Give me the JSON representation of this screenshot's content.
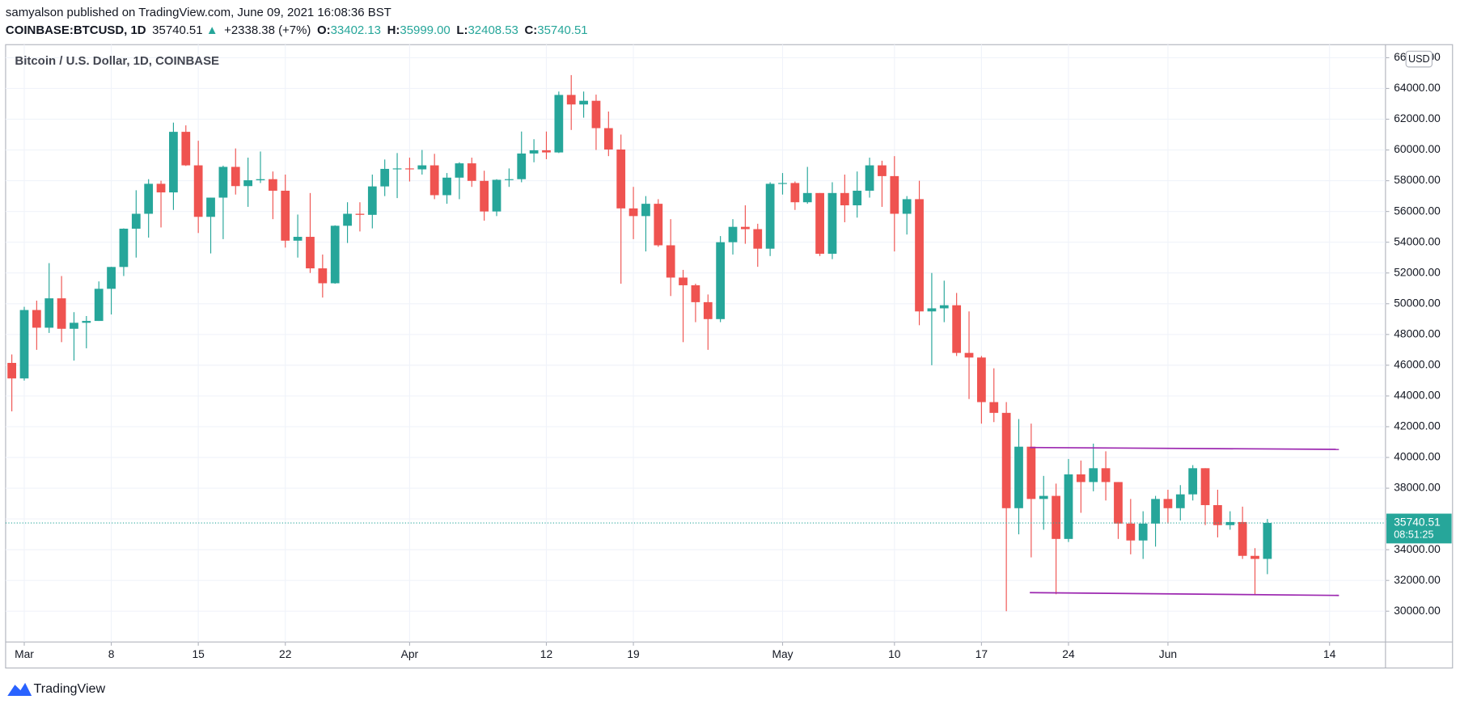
{
  "header": {
    "publisher": "samyalson published on TradingView.com, June 09, 2021 16:08:36 BST",
    "symbol": "COINBASE:BTCUSD, 1D",
    "last": "35740.51",
    "arrow": "▲",
    "change": "+2338.38 (+7%)",
    "open_label": "O:",
    "open": "33402.13",
    "high_label": "H:",
    "high": "35999.00",
    "low_label": "L:",
    "low": "32408.53",
    "close_label": "C:",
    "close": "35740.51"
  },
  "chart_data": {
    "type": "candlestick",
    "title": "Bitcoin / U.S. Dollar, 1D, COINBASE",
    "currency": "USD",
    "up_color": "#26a69a",
    "down_color": "#ef5350",
    "grid": true,
    "categories": [
      null,
      "Mar",
      null,
      null,
      null,
      null,
      null,
      null,
      "8",
      null,
      null,
      null,
      null,
      null,
      null,
      "15",
      null,
      null,
      null,
      null,
      null,
      null,
      "22",
      null,
      null,
      null,
      null,
      null,
      null,
      null,
      null,
      null,
      "Apr",
      null,
      null,
      null,
      null,
      null,
      null,
      null,
      null,
      null,
      null,
      "12",
      null,
      null,
      null,
      null,
      null,
      null,
      "19",
      null,
      null,
      null,
      null,
      null,
      null,
      null,
      null,
      null,
      null,
      null,
      "May",
      null,
      null,
      null,
      null,
      null,
      null,
      null,
      null,
      "10",
      null,
      null,
      null,
      null,
      null,
      null,
      "17",
      null,
      null,
      null,
      null,
      null,
      null,
      "24",
      null,
      null,
      null,
      null,
      null,
      null,
      null,
      "Jun",
      null,
      null,
      null,
      null,
      null,
      null,
      null,
      null,
      null,
      null,
      null,
      null,
      "14",
      null,
      null,
      null,
      null
    ],
    "open": [
      46150,
      45140,
      49590,
      48440,
      50350,
      48370,
      48760,
      48880,
      50970,
      52390,
      54880,
      55850,
      57800,
      57240,
      61180,
      59000,
      55650,
      56900,
      58900,
      57650,
      58030,
      58100,
      57350,
      54100,
      54350,
      52300,
      51330,
      55070,
      55850,
      55780,
      57630,
      58770,
      58800,
      58740,
      59000,
      57060,
      58200,
      59130,
      57990,
      56000,
      58060,
      58100,
      59770,
      59980,
      59840,
      63580,
      62960,
      63200,
      61420,
      60030,
      56200,
      55700,
      56500,
      53800,
      51700,
      51200,
      50100,
      49000,
      54000,
      55000,
      54850,
      53580,
      57800,
      57850,
      56600,
      57200,
      53250,
      57200,
      56400,
      57350,
      59000,
      58300,
      55850,
      56800,
      49500,
      49700,
      49900,
      46800,
      46500,
      43600,
      42900,
      36700,
      40700,
      37300,
      37500,
      34700,
      38900,
      38400,
      39300,
      38400,
      35700,
      34600,
      35700,
      37300,
      36700,
      37600,
      39300,
      36900,
      35600,
      35800,
      33600,
      33402.13,
      null,
      null,
      null,
      null,
      null,
      null,
      null,
      null,
      null
    ],
    "high": [
      46700,
      49800,
      50200,
      52640,
      51800,
      49450,
      49200,
      51450,
      52400,
      54900,
      57380,
      58100,
      58000,
      61780,
      61600,
      60600,
      56900,
      58980,
      60100,
      59500,
      59900,
      58600,
      58400,
      55800,
      57200,
      53200,
      55100,
      56600,
      56600,
      58400,
      59380,
      59800,
      59500,
      60000,
      59750,
      58500,
      59200,
      59500,
      58650,
      58100,
      58800,
      61200,
      60700,
      61200,
      63800,
      64870,
      63800,
      63600,
      62500,
      61000,
      57600,
      57000,
      56800,
      55500,
      52200,
      51300,
      50600,
      54400,
      55500,
      56400,
      55200,
      57900,
      58500,
      57950,
      58900,
      57200,
      57900,
      58400,
      58600,
      59500,
      59300,
      59600,
      57000,
      58000,
      52000,
      51500,
      50700,
      49500,
      46600,
      45800,
      43600,
      42500,
      42200,
      38800,
      38300,
      39900,
      39800,
      40900,
      40400,
      38400,
      37300,
      36500,
      37500,
      37900,
      38200,
      39500,
      39300,
      37900,
      36500,
      36800,
      34100,
      35999.0,
      null,
      null,
      null,
      null,
      null,
      null,
      null,
      null,
      null
    ],
    "low": [
      43000,
      45000,
      47000,
      48100,
      47500,
      46300,
      47100,
      48880,
      49300,
      51800,
      53000,
      54300,
      54960,
      56100,
      58960,
      54600,
      53270,
      54200,
      57100,
      56300,
      57850,
      55500,
      53650,
      53000,
      52000,
      50400,
      51300,
      53950,
      54700,
      54900,
      57000,
      56870,
      57950,
      58400,
      56800,
      56500,
      56800,
      57600,
      55400,
      55700,
      57600,
      57900,
      59200,
      59400,
      59800,
      61300,
      62100,
      60000,
      59600,
      51300,
      54200,
      53400,
      53700,
      50500,
      47500,
      48800,
      47000,
      48800,
      53200,
      53900,
      52400,
      53100,
      57100,
      56100,
      56500,
      53100,
      52900,
      55300,
      55600,
      56900,
      56300,
      53400,
      54500,
      48600,
      46000,
      48800,
      46600,
      43800,
      42200,
      42300,
      30000,
      35000,
      33500,
      35300,
      31100,
      34500,
      36400,
      37800,
      37200,
      34700,
      33700,
      33400,
      34200,
      35700,
      35900,
      37200,
      35600,
      34800,
      35300,
      33400,
      31100,
      32408.53,
      null,
      null,
      null,
      null,
      null,
      null,
      null,
      null,
      null
    ],
    "close": [
      45140,
      49590,
      48440,
      50350,
      48370,
      48760,
      48880,
      50970,
      52390,
      54880,
      55850,
      57800,
      57240,
      61180,
      59000,
      55650,
      56900,
      58900,
      57650,
      58030,
      58100,
      57350,
      54100,
      54350,
      52300,
      51330,
      55070,
      55850,
      55780,
      57630,
      58770,
      58800,
      58740,
      59000,
      57060,
      58200,
      59130,
      57990,
      56000,
      58060,
      58100,
      59770,
      59980,
      59840,
      63580,
      62960,
      63200,
      61420,
      60030,
      56200,
      55700,
      56500,
      53800,
      51700,
      51200,
      50100,
      49000,
      54000,
      55000,
      54850,
      53580,
      57800,
      57850,
      56600,
      57200,
      53250,
      57200,
      56400,
      57350,
      59000,
      58300,
      55850,
      56800,
      49500,
      49700,
      49900,
      46800,
      46500,
      43600,
      42900,
      36700,
      40700,
      37300,
      37500,
      34700,
      38900,
      38400,
      39300,
      38400,
      35700,
      34600,
      35700,
      37300,
      36700,
      37600,
      39300,
      36900,
      35600,
      35800,
      33600,
      33400,
      35740.51,
      null,
      null,
      null,
      null,
      null,
      null,
      null,
      null,
      null
    ],
    "ylim": [
      28000,
      66850
    ],
    "yticks": [
      {
        "value": 30000,
        "label": "30000.00"
      },
      {
        "value": 32000,
        "label": "32000.00"
      },
      {
        "value": 34000,
        "label": "34000.00"
      },
      {
        "value": 36000,
        "label": "36000.00"
      },
      {
        "value": 38000,
        "label": "38000.00"
      },
      {
        "value": 40000,
        "label": "40000.00"
      },
      {
        "value": 42000,
        "label": "42000.00"
      },
      {
        "value": 44000,
        "label": "44000.00"
      },
      {
        "value": 46000,
        "label": "46000.00"
      },
      {
        "value": 48000,
        "label": "48000.00"
      },
      {
        "value": 50000,
        "label": "50000.00"
      },
      {
        "value": 52000,
        "label": "52000.00"
      },
      {
        "value": 54000,
        "label": "54000.00"
      },
      {
        "value": 56000,
        "label": "56000.00"
      },
      {
        "value": 58000,
        "label": "58000.00"
      },
      {
        "value": 60000,
        "label": "60000.00"
      },
      {
        "value": 62000,
        "label": "62000.00"
      },
      {
        "value": 64000,
        "label": "64000.00"
      },
      {
        "value": 66000,
        "label": "66000.00"
      }
    ],
    "last_price": 35740.51,
    "countdown": "08:51:25"
  },
  "footer": {
    "brand": "TradingView"
  }
}
